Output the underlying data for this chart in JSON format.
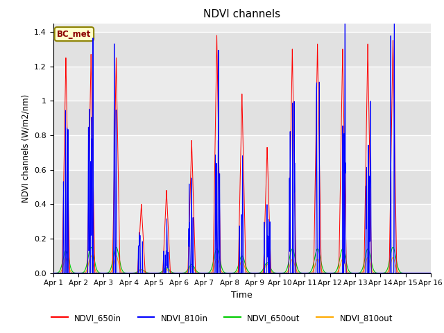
{
  "title": "NDVI channels",
  "xlabel": "Time",
  "ylabel": "NDVI channels (W/m2/nm)",
  "ylim": [
    0,
    1.45
  ],
  "xlim_days": 15,
  "annotation": "BC_met",
  "legend_labels": [
    "NDVI_650in",
    "NDVI_810in",
    "NDVI_650out",
    "NDVI_810out"
  ],
  "legend_colors": [
    "#ff0000",
    "#0000ff",
    "#00cc00",
    "#ffaa00"
  ],
  "xtick_labels": [
    "Apr 1",
    "Apr 2",
    "Apr 3",
    "Apr 4",
    "Apr 5",
    "Apr 6",
    "Apr 7",
    "Apr 8",
    "Apr 9",
    "Apr 10",
    "Apr 11",
    "Apr 12",
    "Apr 13",
    "Apr 14",
    "Apr 15",
    "Apr 16"
  ],
  "ytick_vals": [
    0.0,
    0.2,
    0.4,
    0.6,
    0.8,
    1.0,
    1.2,
    1.4
  ],
  "day_peaks_650in": [
    1.25,
    1.27,
    1.25,
    0.4,
    0.48,
    0.77,
    1.38,
    1.04,
    0.73,
    1.3,
    1.33,
    1.3,
    1.33,
    1.35,
    0.0
  ],
  "day_peaks_810in": [
    0.95,
    0.96,
    0.95,
    0.22,
    0.2,
    0.45,
    1.06,
    0.48,
    0.4,
    1.0,
    1.0,
    0.98,
    1.0,
    1.03,
    0.0
  ],
  "day_peaks_650out": [
    0.13,
    0.15,
    0.15,
    0.02,
    0.03,
    0.05,
    0.14,
    0.1,
    0.06,
    0.14,
    0.14,
    0.14,
    0.14,
    0.15,
    0.0
  ],
  "day_peaks_810out": [
    0.09,
    0.1,
    0.1,
    0.02,
    0.02,
    0.04,
    0.08,
    0.07,
    0.05,
    0.08,
    0.08,
    0.08,
    0.09,
    0.09,
    0.0
  ],
  "background_color": "#ebebeb",
  "grid_color": "#ffffff",
  "fig_width": 6.4,
  "fig_height": 4.8,
  "dpi": 100
}
